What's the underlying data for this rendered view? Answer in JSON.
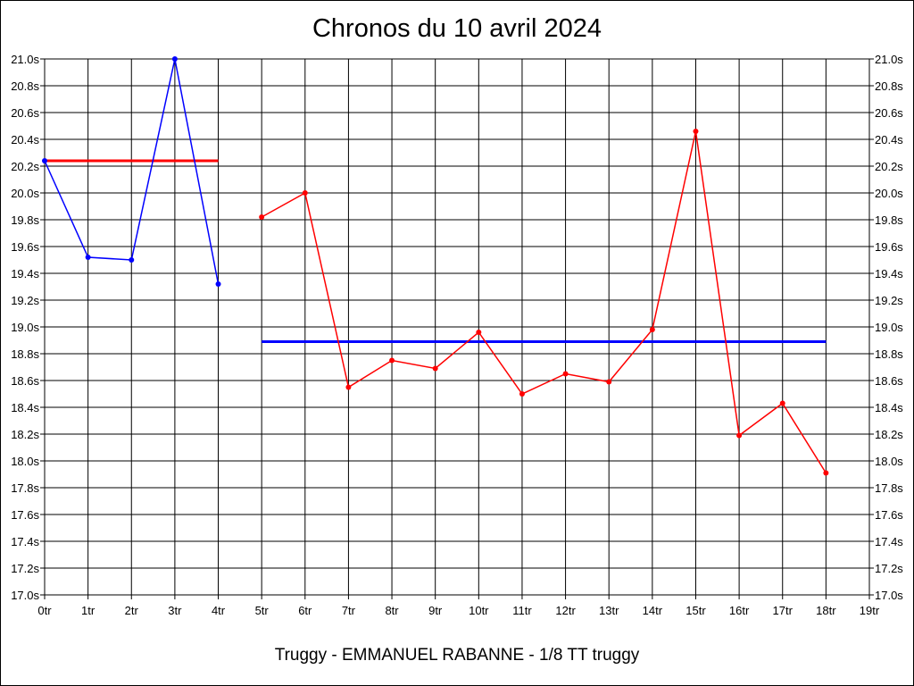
{
  "chart_data": {
    "type": "line",
    "title": "Chronos du 10 avril 2024",
    "caption": "Truggy - EMMANUEL RABANNE - 1/8 TT truggy",
    "x_tick_labels": [
      "0tr",
      "1tr",
      "2tr",
      "3tr",
      "4tr",
      "5tr",
      "6tr",
      "7tr",
      "8tr",
      "9tr",
      "10tr",
      "11tr",
      "12tr",
      "13tr",
      "14tr",
      "15tr",
      "16tr",
      "17tr",
      "18tr",
      "19tr"
    ],
    "y_tick_labels": [
      "17.0s",
      "17.2s",
      "17.4s",
      "17.6s",
      "17.8s",
      "18.0s",
      "18.2s",
      "18.4s",
      "18.6s",
      "18.8s",
      "19.0s",
      "19.2s",
      "19.4s",
      "19.6s",
      "19.8s",
      "20.0s",
      "20.2s",
      "20.4s",
      "20.6s",
      "20.8s",
      "21.0s"
    ],
    "xlim": [
      0,
      19
    ],
    "ylim": [
      17.0,
      21.0
    ],
    "grid": true,
    "series": [
      {
        "color": "#0000ff",
        "x": [
          0,
          1,
          2,
          3,
          4
        ],
        "y": [
          20.24,
          19.52,
          19.5,
          21.0,
          19.32
        ]
      },
      {
        "color": "#ff0000",
        "x": [
          5,
          6,
          7,
          8,
          9,
          10,
          11,
          12,
          13,
          14,
          15,
          16,
          17,
          18
        ],
        "y": [
          19.82,
          20.0,
          18.55,
          18.75,
          18.69,
          18.96,
          18.5,
          18.65,
          18.59,
          18.98,
          20.46,
          18.19,
          18.43,
          17.91
        ]
      }
    ],
    "reference_lines": [
      {
        "color": "#ff0000",
        "x_start": 0,
        "x_end": 4,
        "y": 20.24
      },
      {
        "color": "#0000ff",
        "x_start": 5,
        "x_end": 18,
        "y": 18.89
      }
    ]
  }
}
